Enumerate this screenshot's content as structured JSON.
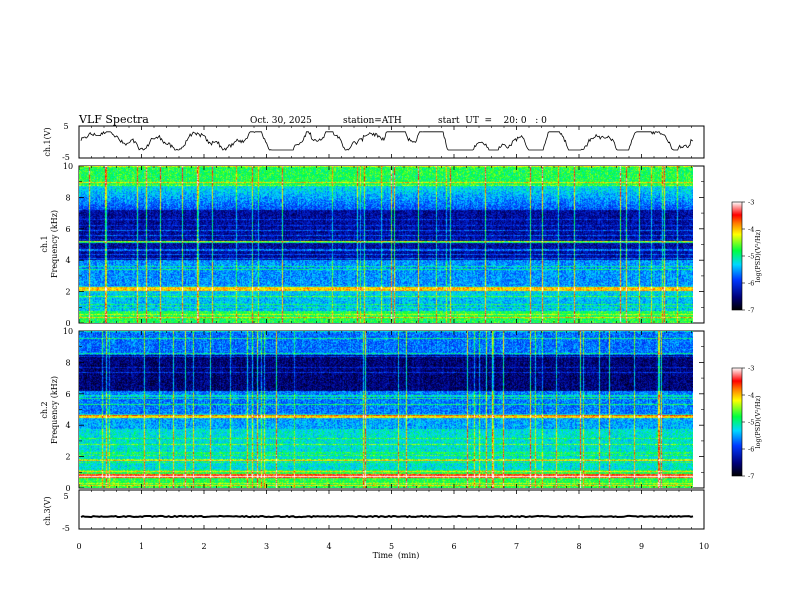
{
  "header": {
    "title": "VLF  Spectra",
    "date": "Oct. 30, 2025",
    "station": "station=ATH",
    "start": "start  UT  =    20: 0   : 0"
  },
  "chart_data": [
    {
      "type": "line",
      "name": "ch1-timeseries",
      "ylabel": "ch.1(V)",
      "ylim": [
        -5,
        5
      ],
      "yticks": [
        "5",
        "-5"
      ],
      "xlim": [
        0,
        10
      ],
      "description_values": "waveform fluctuating roughly between -2 and 3 V"
    },
    {
      "type": "heatmap",
      "name": "ch1-spectrogram",
      "ylabel_channel": "ch.1",
      "ylabel": "Frequency  (kHz)",
      "ylim": [
        0,
        10
      ],
      "yticks": [
        "0",
        "2",
        "4",
        "6",
        "8",
        "10"
      ],
      "xlim": [
        0,
        9.8
      ],
      "colorbar": {
        "label": "log(PSD)(V²/Hz)",
        "range": [
          -7,
          -3
        ],
        "ticks": [
          "-3",
          "-4",
          "-5",
          "-6",
          "-7"
        ]
      }
    },
    {
      "type": "heatmap",
      "name": "ch2-spectrogram",
      "ylabel_channel": "ch.2",
      "ylabel": "Frequency  (kHz)",
      "ylim": [
        0,
        10
      ],
      "yticks": [
        "0",
        "2",
        "4",
        "6",
        "8",
        "10"
      ],
      "xlim": [
        0,
        9.8
      ],
      "colorbar": {
        "label": "log(PSD)(V²/Hz)",
        "range": [
          -7,
          -3
        ],
        "ticks": [
          "-3",
          "-4",
          "-5",
          "-6",
          "-7"
        ]
      }
    },
    {
      "type": "line",
      "name": "ch3-timeseries",
      "ylabel": "ch.3(V)",
      "ylim": [
        -5,
        5
      ],
      "yticks": [
        "5",
        "-5"
      ],
      "level": -1.8
    }
  ],
  "xaxis": {
    "label": "Time  (min)",
    "ticks": [
      "0",
      "1",
      "2",
      "3",
      "4",
      "5",
      "6",
      "7",
      "8",
      "9",
      "10"
    ]
  }
}
